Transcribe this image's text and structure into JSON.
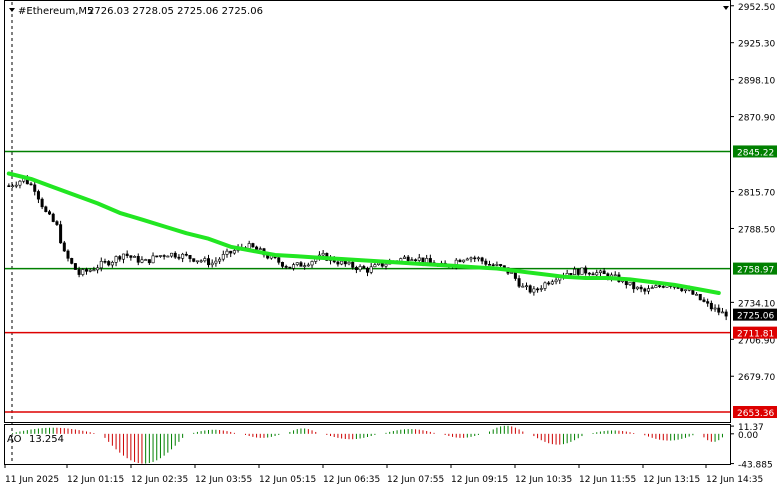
{
  "header": {
    "symbol": "#Ethereum,M5",
    "ohlc": "2726.03 2728.05 2725.06 2725.06"
  },
  "colors": {
    "bull": "#000000",
    "ma": "#22e622",
    "support_resistance": "#008000",
    "red_level": "#dd0000",
    "ao_up": "#008000",
    "ao_down": "#cc0000",
    "price_tag": "#000000"
  },
  "chart_data": [
    {
      "type": "candlestick",
      "title": "#Ethereum,M5",
      "ylim": [
        2646.0,
        2956.0
      ],
      "y_ticks": [
        "2952.50",
        "2925.30",
        "2898.10",
        "2870.90",
        "2815.70",
        "2788.50",
        "2734.10",
        "2706.90",
        "2679.70"
      ],
      "y_tick_values": [
        2952.5,
        2925.3,
        2898.1,
        2870.9,
        2815.7,
        2788.5,
        2734.1,
        2706.9,
        2679.7
      ],
      "x_ticks": [
        "11 Jun 2025",
        "12 Jun 01:15",
        "12 Jun 02:35",
        "12 Jun 03:55",
        "12 Jun 05:15",
        "12 Jun 06:35",
        "12 Jun 07:55",
        "12 Jun 09:15",
        "12 Jun 10:35",
        "12 Jun 11:55",
        "12 Jun 13:15",
        "12 Jun 14:35"
      ],
      "levels": [
        {
          "label": "2845.22",
          "value": 2845.22,
          "color": "#008000"
        },
        {
          "label": "2758.97",
          "value": 2758.97,
          "color": "#008000"
        },
        {
          "label": "2711.81",
          "value": 2711.81,
          "color": "#dd0000"
        },
        {
          "label": "2653.36",
          "value": 2653.36,
          "color": "#dd0000"
        }
      ],
      "current_price": {
        "label": "2725.06",
        "value": 2725.06
      },
      "close_path": [
        [
          0,
          2820
        ],
        [
          4,
          2825
        ],
        [
          7,
          2818
        ],
        [
          10,
          2800
        ],
        [
          13,
          2790
        ],
        [
          15,
          2770
        ],
        [
          17,
          2762
        ],
        [
          19,
          2755
        ],
        [
          22,
          2758
        ],
        [
          25,
          2762
        ],
        [
          28,
          2765
        ],
        [
          31,
          2770
        ],
        [
          34,
          2766
        ],
        [
          37,
          2764
        ],
        [
          40,
          2768
        ],
        [
          43,
          2770
        ],
        [
          46,
          2769
        ],
        [
          49,
          2767
        ],
        [
          52,
          2765
        ],
        [
          55,
          2763
        ],
        [
          58,
          2768
        ],
        [
          61,
          2772
        ],
        [
          64,
          2776
        ],
        [
          67,
          2773
        ],
        [
          70,
          2768
        ],
        [
          73,
          2764
        ],
        [
          76,
          2760
        ],
        [
          79,
          2762
        ],
        [
          82,
          2765
        ],
        [
          85,
          2768
        ],
        [
          88,
          2765
        ],
        [
          91,
          2762
        ],
        [
          94,
          2760
        ],
        [
          97,
          2758
        ],
        [
          100,
          2761
        ],
        [
          103,
          2764
        ],
        [
          106,
          2766
        ],
        [
          109,
          2768
        ],
        [
          112,
          2765
        ],
        [
          115,
          2762
        ],
        [
          118,
          2760
        ],
        [
          121,
          2765
        ],
        [
          124,
          2768
        ],
        [
          127,
          2766
        ],
        [
          130,
          2762
        ],
        [
          133,
          2760
        ],
        [
          136,
          2755
        ],
        [
          139,
          2745
        ],
        [
          142,
          2742
        ],
        [
          145,
          2748
        ],
        [
          148,
          2753
        ],
        [
          151,
          2756
        ],
        [
          154,
          2757
        ],
        [
          157,
          2757
        ],
        [
          160,
          2755
        ],
        [
          163,
          2753
        ],
        [
          166,
          2750
        ],
        [
          169,
          2745
        ],
        [
          172,
          2742
        ],
        [
          175,
          2745
        ],
        [
          178,
          2748
        ],
        [
          181,
          2746
        ],
        [
          184,
          2742
        ],
        [
          187,
          2736
        ],
        [
          190,
          2730
        ],
        [
          193,
          2726
        ]
      ],
      "ma_path": [
        [
          0,
          2829
        ],
        [
          6,
          2825
        ],
        [
          12,
          2819
        ],
        [
          18,
          2813
        ],
        [
          24,
          2807
        ],
        [
          30,
          2800
        ],
        [
          36,
          2795
        ],
        [
          42,
          2790
        ],
        [
          48,
          2785
        ],
        [
          54,
          2781
        ],
        [
          60,
          2775
        ],
        [
          66,
          2772
        ],
        [
          72,
          2769
        ],
        [
          78,
          2768
        ],
        [
          84,
          2767
        ],
        [
          90,
          2766
        ],
        [
          96,
          2765
        ],
        [
          102,
          2764
        ],
        [
          108,
          2763
        ],
        [
          114,
          2762
        ],
        [
          120,
          2761
        ],
        [
          126,
          2760
        ],
        [
          132,
          2759
        ],
        [
          138,
          2757
        ],
        [
          144,
          2755
        ],
        [
          150,
          2753
        ],
        [
          156,
          2752
        ],
        [
          162,
          2752
        ],
        [
          168,
          2751
        ],
        [
          174,
          2749
        ],
        [
          180,
          2747
        ],
        [
          186,
          2744
        ],
        [
          192,
          2741
        ]
      ]
    },
    {
      "type": "bar",
      "title": "AO",
      "value_label": "13.254",
      "ylim": [
        -44.5,
        13.0
      ],
      "y_ticks": [
        "11.37",
        "0.00",
        "-43.885"
      ],
      "y_tick_values": [
        11.37,
        0.0,
        -43.885
      ],
      "waves": [
        [
          0,
          24,
          9,
          10
        ],
        [
          25,
          48,
          -44,
          26
        ],
        [
          49,
          62,
          6,
          14
        ],
        [
          63,
          74,
          -6,
          12
        ],
        [
          75,
          84,
          8,
          10
        ],
        [
          85,
          100,
          -8,
          16
        ],
        [
          101,
          116,
          7,
          16
        ],
        [
          117,
          128,
          -6,
          12
        ],
        [
          129,
          140,
          12,
          12
        ],
        [
          141,
          156,
          -16,
          16
        ],
        [
          157,
          170,
          5,
          14
        ],
        [
          171,
          186,
          -10,
          16
        ],
        [
          187,
          194,
          -12,
          8
        ]
      ]
    }
  ]
}
